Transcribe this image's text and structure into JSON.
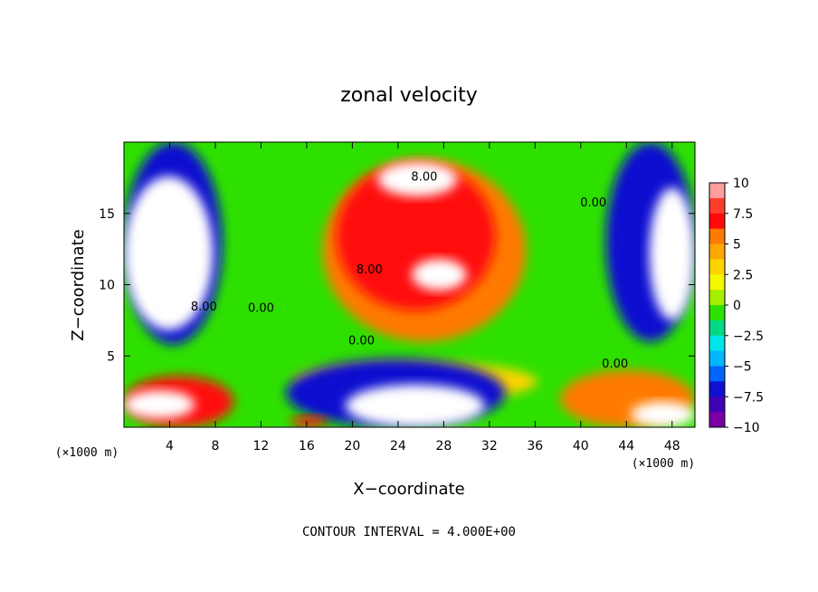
{
  "chart_data": {
    "type": "heatmap",
    "title": "zonal velocity",
    "xlabel": "X−coordinate",
    "ylabel": "Z−coordinate",
    "x_unit_left": "(×1000 m)",
    "x_unit_right": "(×1000 m)",
    "xlim": [
      0,
      50
    ],
    "ylim": [
      0,
      20
    ],
    "x_ticks": [
      4,
      8,
      12,
      16,
      20,
      24,
      28,
      32,
      36,
      40,
      44,
      48
    ],
    "x_tick_labels": [
      "4",
      "8",
      "12",
      "16",
      "20",
      "24",
      "28",
      "32",
      "36",
      "40",
      "44",
      "48"
    ],
    "y_ticks": [
      5,
      10,
      15
    ],
    "y_tick_labels": [
      "5",
      "10",
      "15"
    ],
    "contour_labels": [
      {
        "text": "8.00",
        "x": 26.3,
        "y": 17.3
      },
      {
        "text": "0.00",
        "x": 41.1,
        "y": 15.5
      },
      {
        "text": "8.00",
        "x": 21.5,
        "y": 10.8
      },
      {
        "text": "0.00",
        "x": 12.0,
        "y": 8.1
      },
      {
        "text": "8.00",
        "x": 7.0,
        "y": 8.2
      },
      {
        "text": "0.00",
        "x": 20.8,
        "y": 5.8
      },
      {
        "text": "0.00",
        "x": 43.0,
        "y": 4.2
      }
    ],
    "colorbar": {
      "range": [
        -10,
        10
      ],
      "levels": [
        10,
        8.75,
        7.5,
        6.25,
        5,
        3.75,
        2.5,
        1.25,
        0,
        -1.25,
        -2.5,
        -3.75,
        -5,
        -6.25,
        -7.5,
        -8.75
      ],
      "tick_values": [
        10,
        7.5,
        5,
        2.5,
        0,
        -2.5,
        -5,
        -7.5,
        -10
      ],
      "tick_labels": [
        "10",
        "7.5",
        "5",
        "2.5",
        "0",
        "−2.5",
        "−5",
        "−7.5",
        "−10"
      ],
      "colors": [
        "#ff9d9d",
        "#ff3d2b",
        "#ff0a0a",
        "#ff7a00",
        "#ffa800",
        "#ffd400",
        "#f4f800",
        "#a6ee00",
        "#2ee000",
        "#00d884",
        "#00e6e6",
        "#00b6ff",
        "#0064ff",
        "#1010d0",
        "#4000b6",
        "#7a00a6"
      ]
    },
    "field_regions": [
      {
        "level": 3.75,
        "x": [
          14.8,
          36.2
        ],
        "y": [
          1.8,
          4.6
        ]
      },
      {
        "level": 6.25,
        "x": [
          17.4,
          35.2
        ],
        "y": [
          6.0,
          18.8
        ]
      },
      {
        "level": 7.5,
        "x": [
          18.6,
          32.5
        ],
        "y": [
          8.2,
          18.6
        ]
      },
      {
        "level": 10,
        "x": [
          25.2,
          30.0
        ],
        "y": [
          9.6,
          11.8
        ]
      },
      {
        "level": 10,
        "x": [
          22.2,
          29.2
        ],
        "y": [
          16.2,
          18.6
        ]
      },
      {
        "level": -6.25,
        "x": [
          0,
          8.6
        ],
        "y": [
          5.8,
          20
        ]
      },
      {
        "level": -10,
        "x": [
          0,
          7.8
        ],
        "y": [
          6.8,
          17.6
        ]
      },
      {
        "level": -6.25,
        "x": [
          42.2,
          50
        ],
        "y": [
          6.0,
          20
        ]
      },
      {
        "level": -10,
        "x": [
          46.0,
          50
        ],
        "y": [
          7.5,
          16.8
        ]
      },
      {
        "level": -6.25,
        "x": [
          14.2,
          33.4
        ],
        "y": [
          0,
          4.8
        ]
      },
      {
        "level": -10,
        "x": [
          19.4,
          31.6
        ],
        "y": [
          0,
          3.0
        ]
      },
      {
        "level": 7.5,
        "x": [
          0,
          9.6
        ],
        "y": [
          0,
          3.6
        ]
      },
      {
        "level": 10,
        "x": [
          0,
          6.2
        ],
        "y": [
          0.6,
          2.6
        ]
      },
      {
        "level": 6.25,
        "x": [
          38.2,
          50
        ],
        "y": [
          0,
          4.0
        ]
      },
      {
        "level": -10,
        "x": [
          44.4,
          50
        ],
        "y": [
          0,
          1.8
        ]
      },
      {
        "level": 7.5,
        "x": [
          14.6,
          17.8
        ],
        "y": [
          0,
          0.8
        ]
      }
    ],
    "footer": "CONTOUR INTERVAL = 4.000E+00"
  }
}
